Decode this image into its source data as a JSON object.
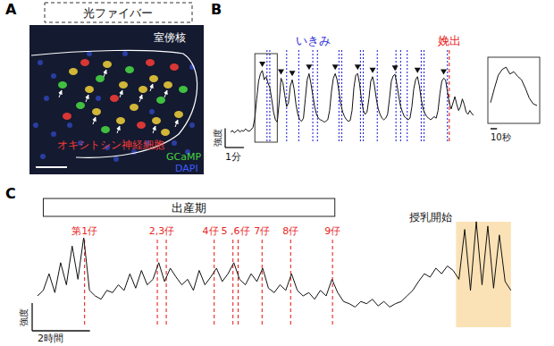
{
  "chart_data": [
    {
      "type": "image",
      "panel": "A",
      "fiber_label": "光ファイバー",
      "region_label": "室傍核",
      "channels": [
        {
          "name": "オキシトシン神経細胞",
          "color": "#ee3b36"
        },
        {
          "name": "GCaMP",
          "color": "#46d243"
        },
        {
          "name": "DAPI",
          "color": "#3d5bff"
        }
      ]
    },
    {
      "type": "line",
      "panel": "B",
      "xlim": [
        0,
        13
      ],
      "ylim": [
        0,
        100
      ],
      "tick_labels": false,
      "series": [
        {
          "type": "line",
          "color": "#111111",
          "x": [
            0,
            0.1,
            0.2,
            0.3,
            0.4,
            0.5,
            0.6,
            0.7,
            0.8,
            0.9,
            1,
            1.1,
            1.2,
            1.3,
            1.4,
            1.5,
            1.6,
            1.7,
            1.8,
            1.9,
            2,
            2.1,
            2.2,
            2.3,
            2.4,
            2.5,
            2.6,
            2.7,
            2.8,
            2.9,
            3,
            3.1,
            3.2,
            3.3,
            3.4,
            3.5,
            3.6,
            3.7,
            3.8,
            3.9,
            4,
            4.1,
            4.2,
            4.3,
            4.4,
            4.5,
            4.6,
            4.7,
            4.8,
            4.9,
            5,
            5.1,
            5.2,
            5.3,
            5.4,
            5.5,
            5.6,
            5.7,
            5.8,
            5.9,
            6,
            6.1,
            6.2,
            6.3,
            6.4,
            6.5,
            6.6,
            6.7,
            6.8,
            6.9,
            7,
            7.1,
            7.2,
            7.3,
            7.4,
            7.5,
            7.6,
            7.7,
            7.8,
            7.9,
            8,
            8.1,
            8.2,
            8.3,
            8.4,
            8.5,
            8.6,
            8.7,
            8.8,
            8.9,
            9,
            9.1,
            9.2,
            9.3,
            9.4,
            9.5,
            9.6,
            9.7,
            9.8,
            9.9,
            10,
            10.1,
            10.2,
            10.3,
            10.4,
            10.5,
            10.6,
            10.7,
            10.8,
            10.9,
            11,
            11.1,
            11.2,
            11.3,
            11.4,
            11.5,
            11.6,
            11.7,
            11.8,
            11.9,
            12,
            12.1,
            12.2,
            12.3,
            12.4,
            12.5,
            12.6,
            12.7,
            12.8,
            12.9,
            13
          ],
          "values": [
            12,
            14,
            11,
            13,
            15,
            12,
            14,
            13,
            16,
            14,
            13,
            15,
            18,
            30,
            55,
            78,
            88,
            92,
            80,
            84,
            76,
            70,
            55,
            38,
            28,
            25,
            50,
            82,
            76,
            60,
            45,
            50,
            72,
            80,
            68,
            48,
            35,
            28,
            26,
            30,
            55,
            80,
            88,
            75,
            60,
            45,
            35,
            30,
            28,
            27,
            25,
            26,
            28,
            40,
            65,
            82,
            88,
            80,
            65,
            48,
            38,
            32,
            28,
            26,
            27,
            40,
            70,
            86,
            88,
            75,
            55,
            40,
            35,
            38,
            55,
            78,
            84,
            72,
            55,
            42,
            35,
            30,
            28,
            30,
            35,
            55,
            78,
            85,
            87,
            74,
            58,
            45,
            38,
            32,
            30,
            28,
            30,
            45,
            68,
            80,
            84,
            72,
            55,
            42,
            36,
            32,
            30,
            28,
            30,
            32,
            30,
            40,
            62,
            78,
            82,
            80,
            65,
            50,
            42,
            50,
            58,
            48,
            40,
            45,
            55,
            48,
            38,
            35,
            40,
            36,
            34
          ]
        },
        {
          "name": "いきみ",
          "type": "vline",
          "color": "#2a2ad6",
          "line_style": "dotted",
          "x": [
            1.95,
            2.1,
            3.0,
            3.65,
            4.4,
            4.65,
            5.8,
            5.95,
            6.95,
            7.1,
            7.85,
            8.85,
            9.1,
            9.45,
            10.2,
            10.35,
            11.6
          ]
        },
        {
          "name": "娩出",
          "type": "vline",
          "color": "#e8261e",
          "line_style": "dashed",
          "x": [
            11.7
          ]
        }
      ],
      "peaks": [
        1.7,
        2.7,
        3.3,
        4.2,
        5.6,
        6.8,
        7.6,
        8.8,
        10,
        11.4
      ],
      "inset": {
        "xlim": [
          1.3,
          2.5
        ],
        "scale_bar": {
          "label": "10秒",
          "value": 0.1667
        }
      },
      "x_scale_bar": {
        "label": "1分",
        "value": 1
      },
      "y_scale_bar": {
        "label": "強度",
        "value": 25
      }
    },
    {
      "type": "line",
      "panel": "C",
      "xlim": [
        0,
        16.5
      ],
      "ylim": [
        0,
        100
      ],
      "tick_labels": false,
      "series": [
        {
          "type": "line",
          "color": "#111111",
          "x": [
            0,
            0.2,
            0.4,
            0.6,
            0.8,
            1,
            1.2,
            1.4,
            1.6,
            1.8,
            2,
            2.2,
            2.4,
            2.6,
            2.8,
            3,
            3.2,
            3.4,
            3.6,
            3.8,
            4,
            4.2,
            4.4,
            4.6,
            4.8,
            5,
            5.2,
            5.4,
            5.6,
            5.8,
            6,
            6.2,
            6.4,
            6.6,
            6.8,
            7,
            7.2,
            7.4,
            7.6,
            7.8,
            8,
            8.2,
            8.4,
            8.6,
            8.8,
            9,
            9.2,
            9.4,
            9.6,
            9.8,
            10,
            10.2,
            10.4,
            10.6,
            10.8,
            11,
            11.2,
            11.4,
            11.6,
            11.8,
            12,
            12.2,
            12.4,
            12.6,
            12.8,
            13,
            13.2,
            13.4,
            13.6,
            13.8,
            14,
            14.2,
            14.4,
            14.6,
            14.8,
            15,
            15.2,
            15.4,
            15.6,
            15.8,
            16,
            16.2,
            16.4
          ],
          "values": [
            25,
            30,
            45,
            28,
            55,
            35,
            70,
            40,
            78,
            30,
            25,
            22,
            30,
            28,
            35,
            30,
            45,
            32,
            48,
            35,
            40,
            55,
            38,
            50,
            42,
            35,
            40,
            30,
            48,
            35,
            42,
            50,
            38,
            45,
            55,
            40,
            35,
            45,
            38,
            50,
            32,
            28,
            35,
            30,
            45,
            30,
            25,
            28,
            22,
            30,
            25,
            40,
            28,
            20,
            18,
            15,
            20,
            18,
            22,
            16,
            20,
            15,
            18,
            20,
            25,
            30,
            38,
            45,
            42,
            50,
            45,
            52,
            48,
            40,
            85,
            30,
            92,
            35,
            88,
            32,
            80,
            38,
            30
          ]
        },
        {
          "type": "vline",
          "color": "#e8261e",
          "line_style": "dashed",
          "x": [
            1.63,
            4.15,
            4.46,
            6.12,
            6.77,
            6.95,
            7.78,
            8.77,
            10.22
          ],
          "labels": [
            "第1仔",
            "2,3仔",
            null,
            "4仔",
            "5 ,6仔",
            null,
            "7仔",
            "8仔",
            "9仔"
          ]
        }
      ],
      "periods": [
        {
          "label": "出産期",
          "start": 0.2,
          "end": 10.3
        },
        {
          "label": "授乳開始",
          "start": 14.5,
          "end": 16.4,
          "color": "#fbe2b6"
        }
      ],
      "x_scale_bar": {
        "label": "2時間",
        "value": 2
      },
      "y_scale_bar": {
        "label": "強度",
        "value": 25
      }
    }
  ]
}
